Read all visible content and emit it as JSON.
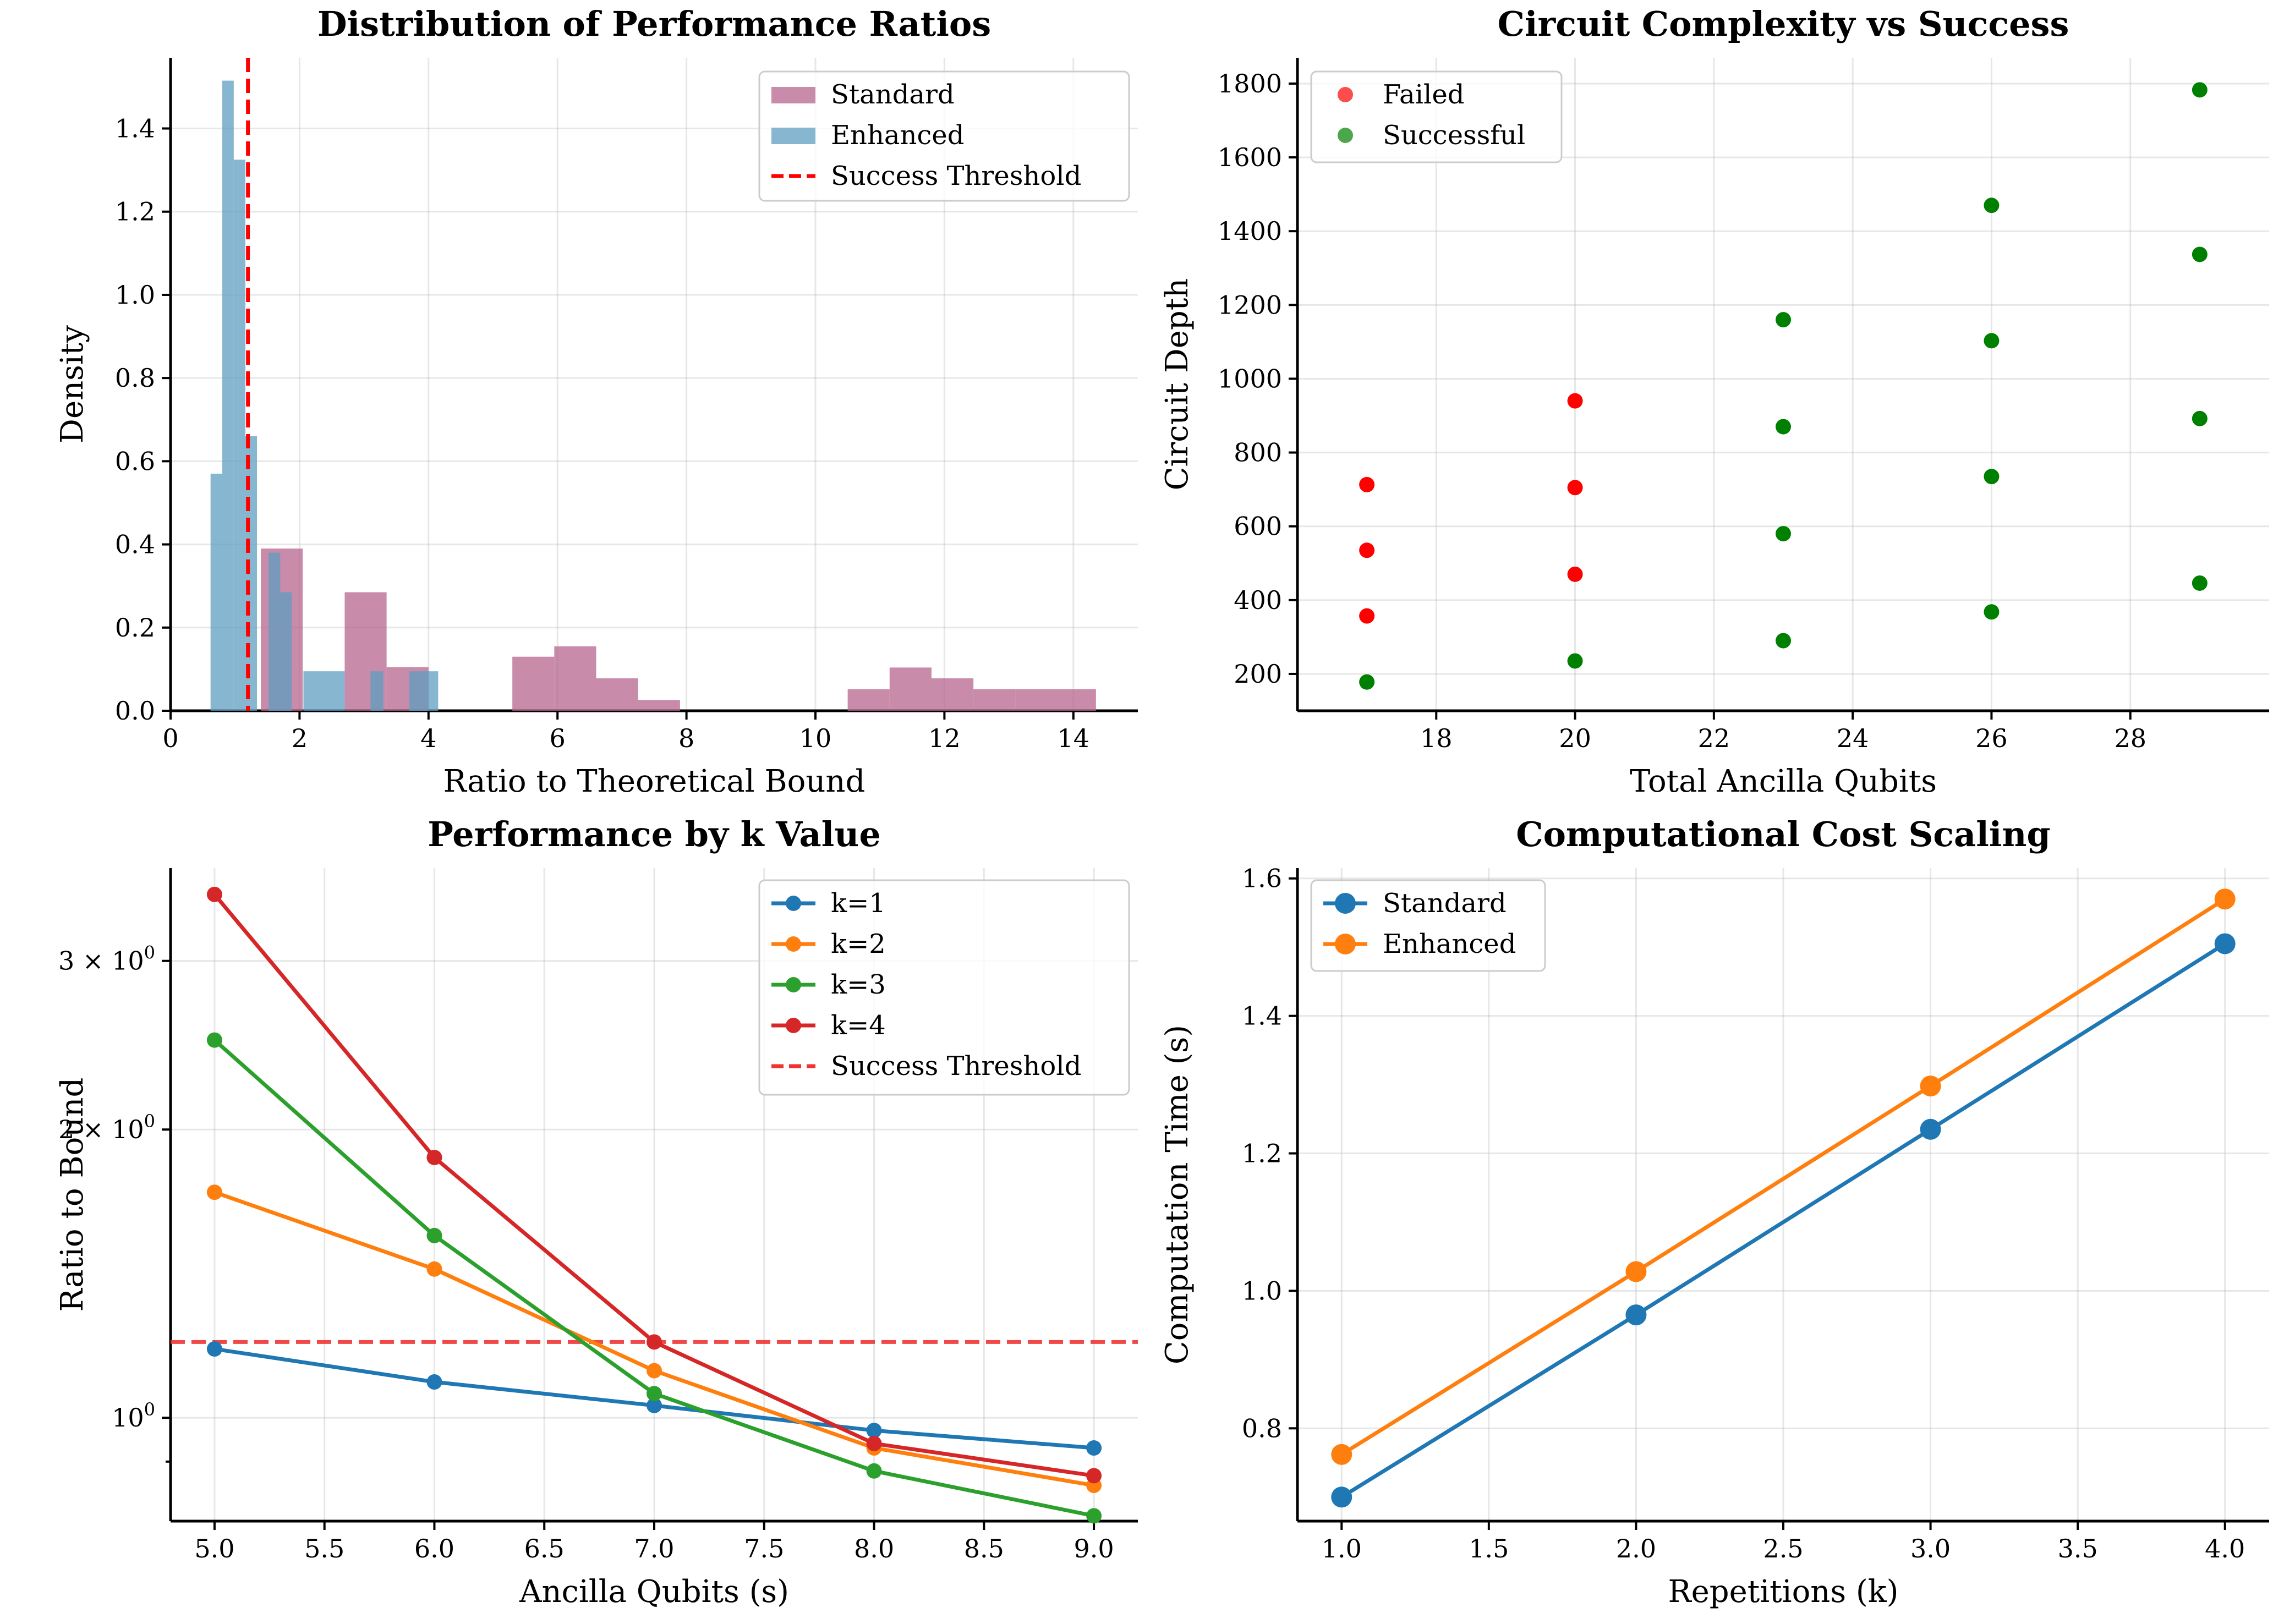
{
  "chart_data": [
    {
      "type": "bar",
      "title": "Distribution of Performance Ratios",
      "xlabel": "Ratio to Theoretical Bound",
      "ylabel": "Density",
      "xlim": [
        0,
        15
      ],
      "ylim": [
        0,
        1.57
      ],
      "xticks": [
        "0",
        "2",
        "4",
        "6",
        "8",
        "10",
        "12",
        "14"
      ],
      "xtick_values": [
        0,
        2,
        4,
        6,
        8,
        10,
        12,
        14
      ],
      "yticks": [
        "0.0",
        "0.2",
        "0.4",
        "0.6",
        "0.8",
        "1.0",
        "1.2",
        "1.4"
      ],
      "ytick_values": [
        0,
        0.2,
        0.4,
        0.6,
        0.8,
        1.0,
        1.2,
        1.4
      ],
      "grid": true,
      "legend_position": "top-right",
      "series": [
        {
          "name": "Standard",
          "color": "#b5648e",
          "opacity": 0.75,
          "bins": [
            {
              "x0": 1.4,
              "x1": 2.05,
              "value": 0.39
            },
            {
              "x0": 2.7,
              "x1": 3.35,
              "value": 0.285
            },
            {
              "x0": 3.35,
              "x1": 4.0,
              "value": 0.105
            },
            {
              "x0": 5.3,
              "x1": 5.95,
              "value": 0.13
            },
            {
              "x0": 5.95,
              "x1": 6.6,
              "value": 0.155
            },
            {
              "x0": 6.6,
              "x1": 7.25,
              "value": 0.078
            },
            {
              "x0": 7.25,
              "x1": 7.9,
              "value": 0.026
            },
            {
              "x0": 10.5,
              "x1": 11.15,
              "value": 0.052
            },
            {
              "x0": 11.15,
              "x1": 11.8,
              "value": 0.104
            },
            {
              "x0": 11.8,
              "x1": 12.45,
              "value": 0.078
            },
            {
              "x0": 12.45,
              "x1": 13.1,
              "value": 0.052
            },
            {
              "x0": 13.1,
              "x1": 13.75,
              "value": 0.052
            },
            {
              "x0": 13.75,
              "x1": 14.35,
              "value": 0.052
            }
          ]
        },
        {
          "name": "Enhanced",
          "color": "#5f9ec0",
          "opacity": 0.75,
          "bins": [
            {
              "x0": 0.62,
              "x1": 0.8,
              "value": 0.57
            },
            {
              "x0": 0.8,
              "x1": 0.98,
              "value": 1.515
            },
            {
              "x0": 0.98,
              "x1": 1.16,
              "value": 1.325
            },
            {
              "x0": 1.16,
              "x1": 1.34,
              "value": 0.66
            },
            {
              "x0": 1.52,
              "x1": 1.7,
              "value": 0.38
            },
            {
              "x0": 1.7,
              "x1": 1.88,
              "value": 0.285
            },
            {
              "x0": 2.06,
              "x1": 2.7,
              "value": 0.095
            },
            {
              "x0": 3.1,
              "x1": 3.3,
              "value": 0.095
            },
            {
              "x0": 3.7,
              "x1": 3.9,
              "value": 0.095
            },
            {
              "x0": 3.9,
              "x1": 4.15,
              "value": 0.095
            }
          ]
        }
      ],
      "threshold": {
        "name": "Success Threshold",
        "x": 1.2,
        "color": "#ff0000"
      }
    },
    {
      "type": "scatter",
      "title": "Circuit Complexity vs Success",
      "xlabel": "Total Ancilla Qubits",
      "ylabel": "Circuit Depth",
      "xlim": [
        16.0,
        30.0
      ],
      "ylim": [
        100,
        1870
      ],
      "xticks": [
        "18",
        "20",
        "22",
        "24",
        "26",
        "28"
      ],
      "xtick_values": [
        18,
        20,
        22,
        24,
        26,
        28
      ],
      "yticks": [
        "200",
        "400",
        "600",
        "800",
        "1000",
        "1200",
        "1400",
        "1600",
        "1800"
      ],
      "ytick_values": [
        200,
        400,
        600,
        800,
        1000,
        1200,
        1400,
        1600,
        1800
      ],
      "grid": true,
      "legend_position": "top-left",
      "series": [
        {
          "name": "Failed",
          "color": "#ff0000",
          "points": [
            [
              17,
              713
            ],
            [
              17,
              535
            ],
            [
              17,
              357
            ],
            [
              20,
              940
            ],
            [
              20,
              705
            ],
            [
              20,
              470
            ]
          ]
        },
        {
          "name": "Successful",
          "color": "#008000",
          "points": [
            [
              17,
              178
            ],
            [
              20,
              235
            ],
            [
              23,
              1160
            ],
            [
              23,
              870
            ],
            [
              23,
              580
            ],
            [
              23,
              290
            ],
            [
              26,
              1470
            ],
            [
              26,
              1103
            ],
            [
              26,
              735
            ],
            [
              26,
              368
            ],
            [
              29,
              1783
            ],
            [
              29,
              1337
            ],
            [
              29,
              892
            ],
            [
              29,
              446
            ]
          ]
        }
      ]
    },
    {
      "type": "line",
      "title": "Performance by k Value",
      "xlabel": "Ancilla Qubits (s)",
      "ylabel": "Ratio to Bound",
      "y_scale": "log",
      "xlim": [
        4.8,
        9.2
      ],
      "ylim": [
        0.78,
        3.75
      ],
      "x": [
        5,
        6,
        7,
        8,
        9
      ],
      "xticks": [
        "5.0",
        "5.5",
        "6.0",
        "6.5",
        "7.0",
        "7.5",
        "8.0",
        "8.5",
        "9.0"
      ],
      "xtick_values": [
        5.0,
        5.5,
        6.0,
        6.5,
        7.0,
        7.5,
        8.0,
        8.5,
        9.0
      ],
      "yticks_major": [
        {
          "value": 1,
          "base": "10",
          "exp": "0",
          "coef": ""
        },
        {
          "value": 2,
          "base": "10",
          "exp": "0",
          "coef": "2 × "
        },
        {
          "value": 3,
          "base": "10",
          "exp": "0",
          "coef": "3 × "
        }
      ],
      "yticks_minor": [
        0.9,
        4
      ],
      "grid": true,
      "legend_position": "top-right",
      "series": [
        {
          "name": "k=1",
          "color": "#1f77b4",
          "values": [
            1.18,
            1.09,
            1.03,
            0.97,
            0.93
          ]
        },
        {
          "name": "k=2",
          "color": "#ff7f0e",
          "values": [
            1.72,
            1.43,
            1.12,
            0.93,
            0.85
          ]
        },
        {
          "name": "k=3",
          "color": "#2ca02c",
          "values": [
            2.48,
            1.55,
            1.06,
            0.88,
            0.79
          ]
        },
        {
          "name": "k=4",
          "color": "#d62728",
          "values": [
            3.52,
            1.87,
            1.2,
            0.94,
            0.87
          ]
        }
      ],
      "threshold": {
        "name": "Success Threshold",
        "y": 1.2,
        "color": "#ee3333"
      }
    },
    {
      "type": "line",
      "title": "Computational Cost Scaling",
      "xlabel": "Repetitions (k)",
      "ylabel": "Computation Time (s)",
      "xlim": [
        0.85,
        4.15
      ],
      "ylim": [
        0.665,
        1.615
      ],
      "x": [
        1,
        2,
        3,
        4
      ],
      "xticks": [
        "1.0",
        "1.5",
        "2.0",
        "2.5",
        "3.0",
        "3.5",
        "4.0"
      ],
      "xtick_values": [
        1.0,
        1.5,
        2.0,
        2.5,
        3.0,
        3.5,
        4.0
      ],
      "yticks": [
        "0.8",
        "1.0",
        "1.2",
        "1.4",
        "1.6"
      ],
      "ytick_values": [
        0.8,
        1.0,
        1.2,
        1.4,
        1.6
      ],
      "grid": true,
      "legend_position": "top-left",
      "series": [
        {
          "name": "Standard",
          "color": "#1f77b4",
          "values": [
            0.7,
            0.965,
            1.235,
            1.505
          ]
        },
        {
          "name": "Enhanced",
          "color": "#ff7f0e",
          "values": [
            0.762,
            1.028,
            1.298,
            1.57
          ]
        }
      ]
    }
  ]
}
